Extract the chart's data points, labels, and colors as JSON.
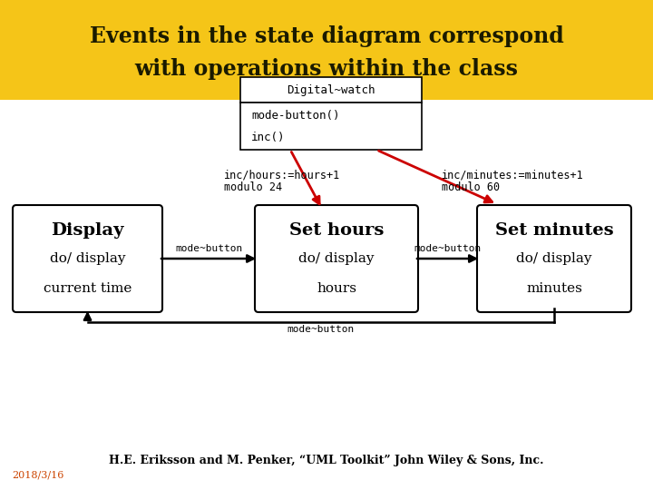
{
  "title_line1": "Events in the state diagram correspond",
  "title_line2": "with operations within the class",
  "title_bg": "#F5C518",
  "title_color": "#1a1a00",
  "bg_color": "#FFFFFF",
  "class_box_title": "Digital~watch",
  "class_box_method1": "mode-button()",
  "class_box_method2": "inc()",
  "state1_line1": "Display",
  "state1_line2": "do/ display",
  "state1_line3": "current time",
  "state2_line1": "Set hours",
  "state2_line2": "do/ display",
  "state2_line3": "hours",
  "state3_line1": "Set minutes",
  "state3_line2": "do/ display",
  "state3_line3": "minutes",
  "arrow12_label": "mode~button",
  "arrow23_label": "mode~button",
  "arrow31_label": "mode~button",
  "inc_hours_label1": "inc/hours:=hours+1",
  "inc_hours_label2": "modulo 24",
  "inc_minutes_label1": "inc/minutes:=minutes+1",
  "inc_minutes_label2": "modulo 60",
  "footer": "H.E. Eriksson and M. Penker, “UML Toolkit” John Wiley & Sons, Inc.",
  "date": "2018/3/16",
  "arrow_color": "#CC0000",
  "line_color": "#000000"
}
